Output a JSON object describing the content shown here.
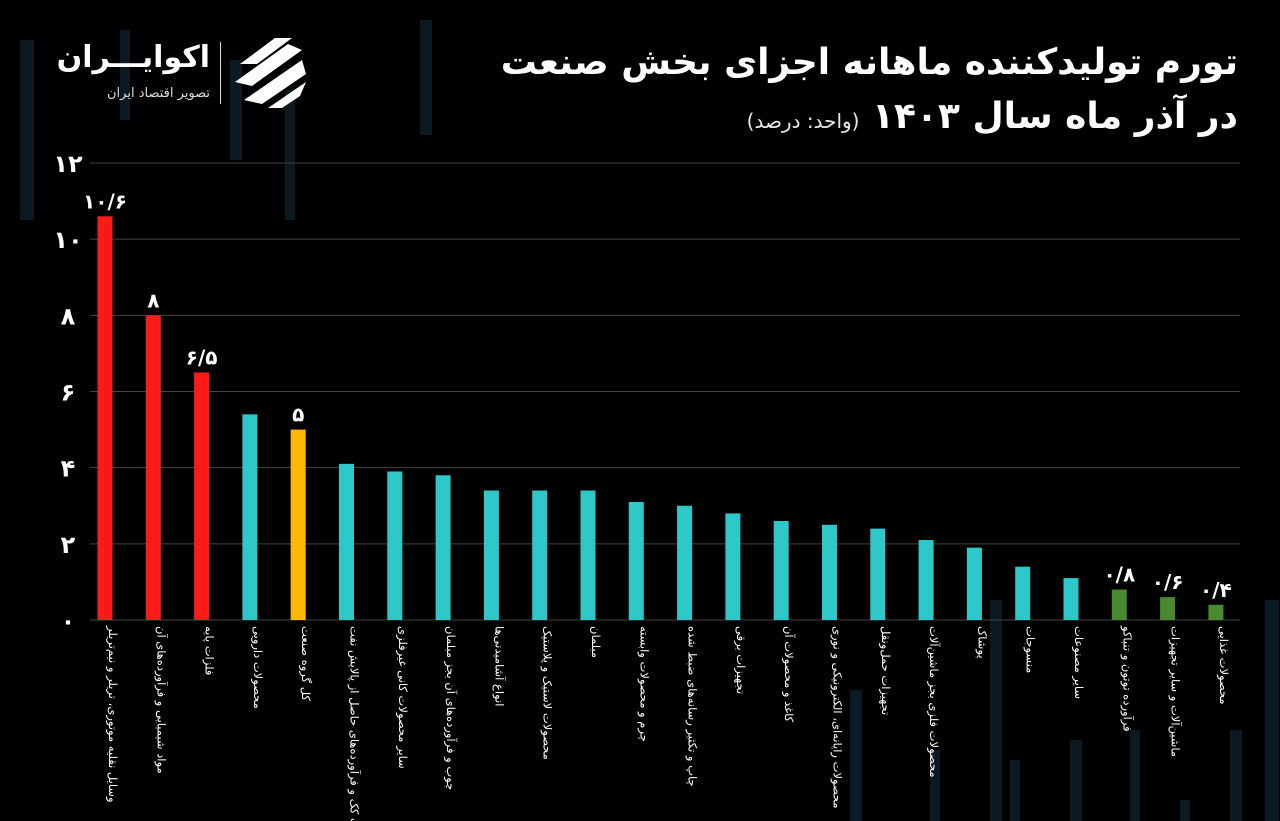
{
  "header": {
    "title_line1": "تورم تولیدکننده ماهانه اجزای بخش صنعت",
    "title_line2": "در آذر ماه سال ۱۴۰۳",
    "unit": "(واحد: درصد)"
  },
  "logo": {
    "name": "اکوایـــران",
    "subtitle": "تصویر اقتصاد ایران"
  },
  "colors": {
    "background": "#000000",
    "red": "#ff1a1a",
    "cyan": "#2ec8c8",
    "yellow": "#ffb800",
    "green": "#4a8a2e",
    "grid": "#444444"
  },
  "chart_data": {
    "type": "bar",
    "ylim": [
      0,
      12
    ],
    "yticks": [
      "۰",
      "۲",
      "۴",
      "۶",
      "۸",
      "۱۰",
      "۱۲"
    ],
    "ytick_values": [
      0,
      2,
      4,
      6,
      8,
      10,
      12
    ],
    "grid": true,
    "categories": [
      "وسایل نقلیه موتوری، تریلر و نیم‌تریلر",
      "مواد شیمیایی و فرآورده‌های آن",
      "فلزات پایه",
      "محصولات دارویی",
      "کل گروه صنعت",
      "ساخت کک و فرآورده‌های حاصل از پالایش نفت",
      "سایر محصولات کانی غیرفلزی",
      "چوب و فرآورده‌های آن بجز مبلمان",
      "انواع آشامیدنی‌ها",
      "محصولات لاستیک و پلاستیک",
      "مبلمان",
      "چرم و محصولات وابسته",
      "چاپ و تکثیر رسانه‌های ضبط شده",
      "تجهیزات برقی",
      "کاغذ و محصولات آن",
      "محصولات رایانه‌ای، الکترونیکی و نوری",
      "تجهیزات حمل‌ونقل",
      "محصولات فلزی بجز ماشین‌آلات",
      "پوشاک",
      "منسوجات",
      "سایر مصنوعات",
      "فرآورده توتون و تنباکو",
      "ماشین‌آلات و سایر تجهیزات",
      "محصولات غذایی"
    ],
    "values": [
      10.6,
      8,
      6.5,
      5.4,
      5,
      4.1,
      3.9,
      3.8,
      3.4,
      3.4,
      3.4,
      3.1,
      3.0,
      2.8,
      2.6,
      2.5,
      2.4,
      2.1,
      1.9,
      1.4,
      1.1,
      0.8,
      0.6,
      0.4
    ],
    "colors": [
      "red",
      "red",
      "red",
      "cyan",
      "yellow",
      "cyan",
      "cyan",
      "cyan",
      "cyan",
      "cyan",
      "cyan",
      "cyan",
      "cyan",
      "cyan",
      "cyan",
      "cyan",
      "cyan",
      "cyan",
      "cyan",
      "cyan",
      "cyan",
      "green",
      "green",
      "green"
    ],
    "data_labels": [
      "۱۰/۶",
      "۸",
      "۶/۵",
      "",
      "۵",
      "",
      "",
      "",
      "",
      "",
      "",
      "",
      "",
      "",
      "",
      "",
      "",
      "",
      "",
      "",
      "",
      "۰/۸",
      "۰/۶",
      "۰/۴"
    ]
  }
}
